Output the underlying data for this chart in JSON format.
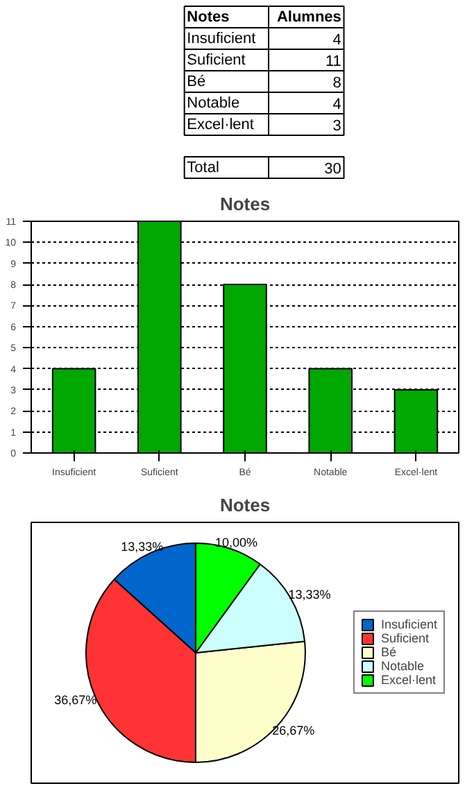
{
  "chart_data": [
    {
      "type": "other",
      "xlabel": "Notes",
      "ylabel": "Alumnes",
      "categories": [
        "Insuficient",
        "Suficient",
        "Bé",
        "Notable",
        "Excel·lent"
      ],
      "values": [
        4,
        11,
        8,
        4,
        3
      ],
      "data_labels": true,
      "annotations": [
        "Total",
        "30"
      ]
    },
    {
      "type": "bar",
      "title": "Notes",
      "categories": [
        "Insuficient",
        "Suficient",
        "Bé",
        "Notable",
        "Excel·lent"
      ],
      "values": [
        4,
        11,
        8,
        4,
        3
      ],
      "color": "#00a800",
      "ylim": [
        0,
        11
      ],
      "yticks": [
        0,
        1,
        2,
        3,
        4,
        5,
        6,
        7,
        8,
        9,
        10,
        11
      ],
      "grid": "y"
    },
    {
      "type": "pie",
      "title": "Notes",
      "categories": [
        "Insuficient",
        "Suficient",
        "Bé",
        "Notable",
        "Excel·lent"
      ],
      "values": [
        13.33,
        36.67,
        26.67,
        13.33,
        10.0
      ],
      "value_labels": [
        "13,33%",
        "36,67%",
        "26,67%",
        "13,33%",
        "10,00%"
      ],
      "colors": [
        "#0066cc",
        "#ff3333",
        "#ffffcc",
        "#ccffff",
        "#00ff00"
      ],
      "legend": "right"
    }
  ]
}
